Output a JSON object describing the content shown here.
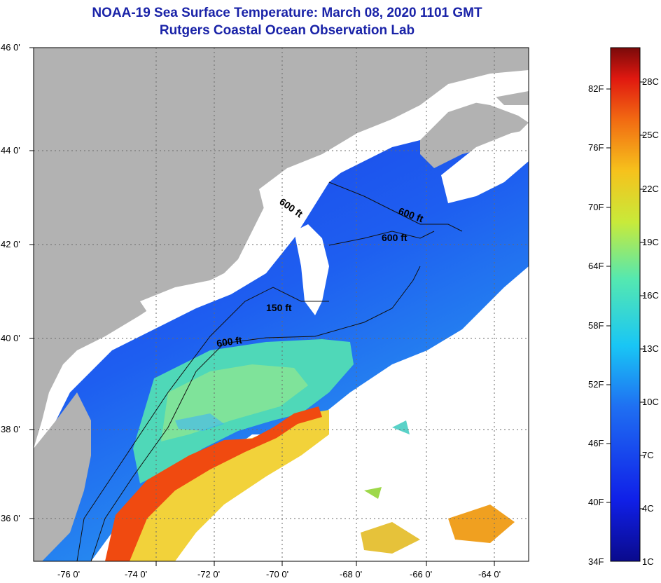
{
  "title": {
    "line1": "NOAA-19 Sea Surface Temperature:  March 08, 2020 1101 GMT",
    "line2": "Rutgers Coastal Ocean Observation Lab"
  },
  "map": {
    "lat_labels": [
      "46 0'",
      "44 0'",
      "42 0'",
      "40 0'",
      "38 0'",
      "36 0'"
    ],
    "lon_labels": [
      "-76 0'",
      "-74 0'",
      "-72 0'",
      "-70 0'",
      "-68 0'",
      "-66 0'",
      "-64 0'"
    ],
    "contour_labels": [
      "600 ft",
      "600 ft",
      "600 ft",
      "150 ft",
      "600 ft"
    ]
  },
  "colorbar": {
    "fahrenheit_labels": [
      "82F",
      "76F",
      "70F",
      "64F",
      "58F",
      "52F",
      "46F",
      "40F",
      "34F"
    ],
    "celsius_labels": [
      "28C",
      "25C",
      "22C",
      "19C",
      "16C",
      "13C",
      "10C",
      "7C",
      "4C",
      "1C"
    ]
  },
  "colors": {
    "title": "#1a23a8",
    "land": "#b2b2b2",
    "cloud": "#ffffff"
  }
}
